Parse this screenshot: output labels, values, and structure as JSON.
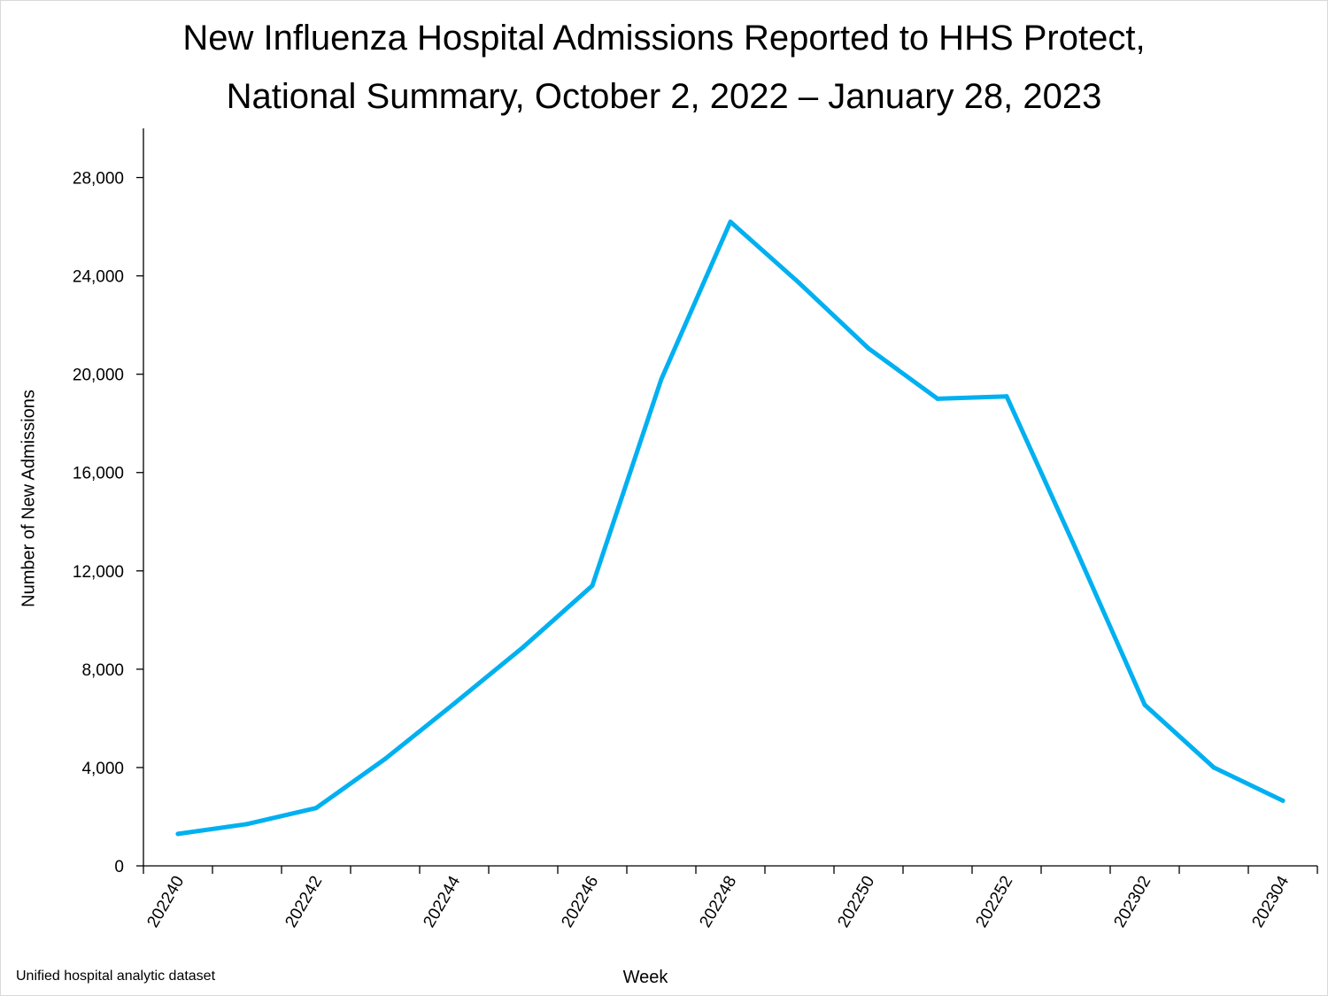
{
  "title_lines": [
    "New Influenza Hospital Admissions Reported to HHS Protect,",
    "National Summary, October 2, 2022 – January 28, 2023"
  ],
  "source_note": "Unified hospital analytic dataset",
  "chart_data": {
    "type": "line",
    "title": "New Influenza Hospital Admissions Reported to HHS Protect, National Summary, October 2, 2022 – January 28, 2023",
    "xlabel": "Week",
    "ylabel": "Number of New Admissions",
    "ylim": [
      0,
      30000
    ],
    "yticks": [
      0,
      4000,
      8000,
      12000,
      16000,
      20000,
      24000,
      28000
    ],
    "ytick_labels": [
      "0",
      "4,000",
      "8,000",
      "12,000",
      "16,000",
      "20,000",
      "24,000",
      "28,000"
    ],
    "x": [
      "202240",
      "202241",
      "202242",
      "202243",
      "202244",
      "202245",
      "202246",
      "202247",
      "202248",
      "202249",
      "202250",
      "202251",
      "202252",
      "202301",
      "202302",
      "202303",
      "202304"
    ],
    "xtick_labels": [
      "202240",
      "",
      "202242",
      "",
      "202244",
      "",
      "202246",
      "",
      "202248",
      "",
      "202250",
      "",
      "202252",
      "",
      "202302",
      "",
      "202304"
    ],
    "series": [
      {
        "values": [
          1300,
          1700,
          2350,
          4350,
          6600,
          8900,
          11400,
          19800,
          26200,
          23700,
          21050,
          19000,
          19100,
          12900,
          6550,
          4000,
          2650
        ],
        "color": "#00B0F0"
      }
    ],
    "grid": false,
    "legend": "none"
  }
}
